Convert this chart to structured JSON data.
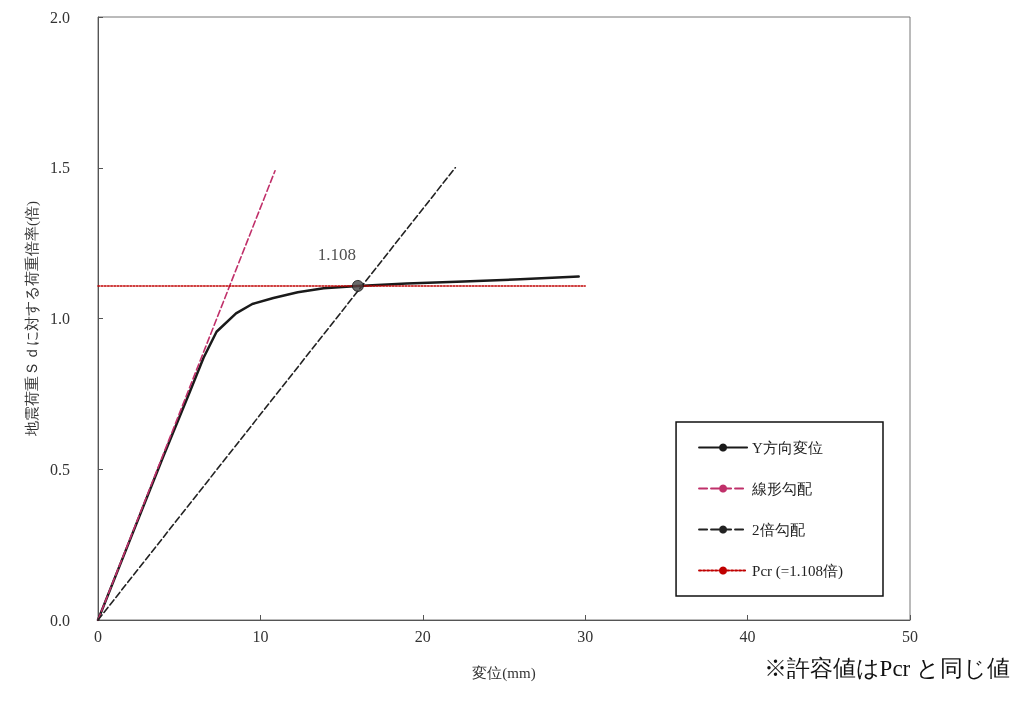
{
  "chart_data": {
    "type": "line",
    "xlabel": "変位(mm)",
    "ylabel": "地震荷重Ｓｄに対する荷重倍率(倍)",
    "xlim": [
      0,
      50
    ],
    "xticks": [
      0,
      10,
      20,
      30,
      40,
      50
    ],
    "ylim": [
      0,
      2
    ],
    "yticks": [
      {
        "value": 0,
        "label": "0.0"
      },
      0.5,
      {
        "value": 1,
        "label": "1.0"
      },
      1.5,
      {
        "value": 2,
        "label": "2.0"
      }
    ],
    "grid": false,
    "legend": "bottom right",
    "marker": "none",
    "series": [
      {
        "name": "Y方向変位",
        "color": "#1a1a1a",
        "line_style": "solid",
        "x": [
          0,
          2,
          4,
          5.7,
          6.5,
          7.3,
          8.5,
          9.5,
          10.8,
          12.3,
          13.9,
          16,
          19,
          22.1,
          26,
          29.6
        ],
        "values": [
          0,
          0.27,
          0.54,
          0.763,
          0.87,
          0.956,
          1.017,
          1.048,
          1.068,
          1.087,
          1.1,
          1.108,
          1.116,
          1.122,
          1.13,
          1.139
        ]
      },
      {
        "name": "線形勾配",
        "color": "#c0306a",
        "line_style": "dashed",
        "x": [
          0,
          10.9
        ],
        "values": [
          0,
          1.49
        ]
      },
      {
        "name": "2倍勾配",
        "color": "#222222",
        "line_style": "dashed",
        "x": [
          0,
          22
        ],
        "values": [
          0,
          1.5
        ]
      },
      {
        "name": "Pcr (=1.108倍)",
        "color": "#c00000",
        "line_style": "dotted",
        "x": [
          0,
          30
        ],
        "values": [
          1.108,
          1.108
        ]
      }
    ],
    "annotations": [
      {
        "text": "1.108",
        "x": 16,
        "y": 1.108
      },
      "※許容値はPcr と同じ値"
    ]
  }
}
